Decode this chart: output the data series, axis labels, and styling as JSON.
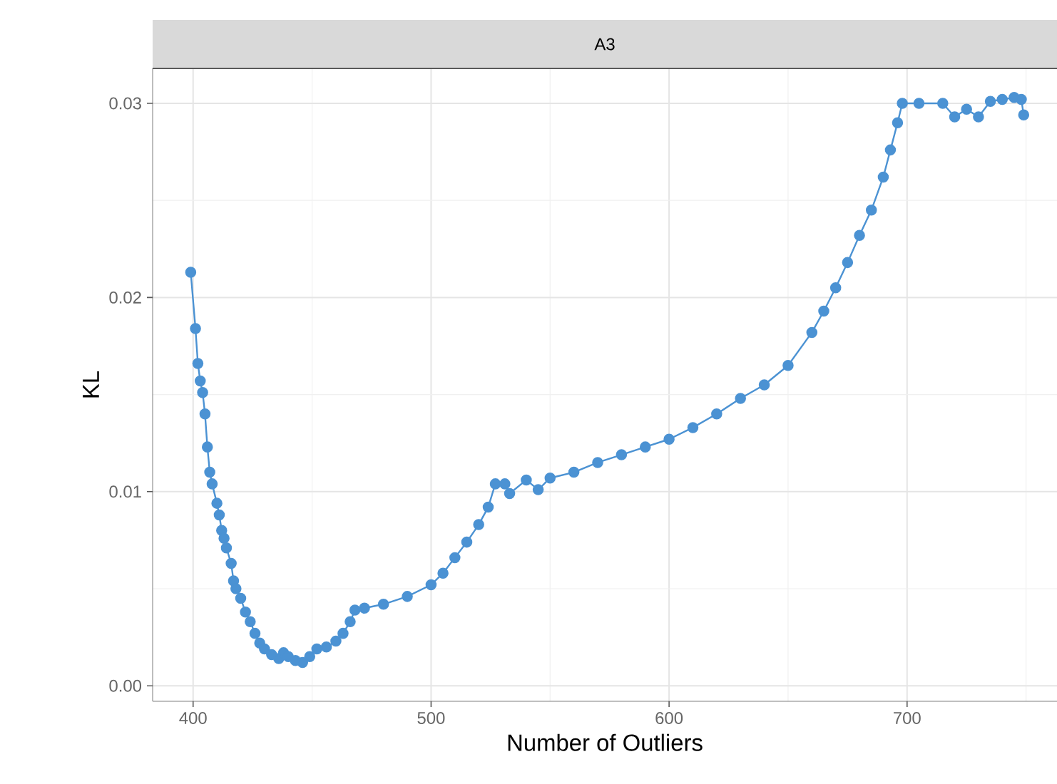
{
  "chart_data": {
    "type": "line",
    "title": "A3",
    "xlabel": "Number of Outliers",
    "ylabel": "KL",
    "xlim": [
      383,
      763
    ],
    "ylim": [
      -0.0008,
      0.0318
    ],
    "xticks": [
      400,
      500,
      600,
      700
    ],
    "yticks": [
      {
        "value": 0,
        "label": "0.00"
      },
      {
        "value": 0.01,
        "label": "0.01"
      },
      {
        "value": 0.02,
        "label": "0.02"
      },
      {
        "value": 0.03,
        "label": "0.03"
      }
    ],
    "grid": true,
    "marker": "circle",
    "line_style": "solid",
    "series": [
      {
        "color": "#4b92d3",
        "x": [
          399,
          401,
          402,
          403,
          404,
          405,
          406,
          407,
          408,
          410,
          411,
          412,
          413,
          414,
          416,
          417,
          418,
          420,
          422,
          424,
          426,
          428,
          430,
          433,
          436,
          438,
          440,
          443,
          446,
          449,
          452,
          456,
          460,
          463,
          466,
          468,
          472,
          480,
          490,
          500,
          505,
          510,
          515,
          520,
          524,
          527,
          531,
          533,
          540,
          545,
          550,
          560,
          570,
          580,
          590,
          600,
          610,
          620,
          630,
          640,
          650,
          660,
          665,
          670,
          675,
          680,
          685,
          690,
          693,
          696,
          698,
          705,
          715,
          720,
          725,
          730,
          735,
          740,
          745,
          748,
          749
        ],
        "values": [
          0.0213,
          0.0184,
          0.0166,
          0.0157,
          0.0151,
          0.014,
          0.0123,
          0.011,
          0.0104,
          0.0094,
          0.0088,
          0.008,
          0.0076,
          0.0071,
          0.0063,
          0.0054,
          0.005,
          0.0045,
          0.0038,
          0.0033,
          0.0027,
          0.0022,
          0.0019,
          0.0016,
          0.0014,
          0.0017,
          0.0015,
          0.0013,
          0.0012,
          0.0015,
          0.0019,
          0.002,
          0.0023,
          0.0027,
          0.0033,
          0.0039,
          0.004,
          0.0042,
          0.0046,
          0.0052,
          0.0058,
          0.0066,
          0.0074,
          0.0083,
          0.0092,
          0.0104,
          0.0104,
          0.0099,
          0.0106,
          0.0101,
          0.0107,
          0.011,
          0.0115,
          0.0119,
          0.0123,
          0.0127,
          0.0133,
          0.014,
          0.0148,
          0.0155,
          0.0165,
          0.0182,
          0.0193,
          0.0205,
          0.0218,
          0.0232,
          0.0245,
          0.0262,
          0.0276,
          0.029,
          0.03,
          0.03,
          0.03,
          0.0293,
          0.0297,
          0.0293,
          0.0301,
          0.0302,
          0.0303,
          0.0302,
          0.0294
        ]
      }
    ]
  }
}
